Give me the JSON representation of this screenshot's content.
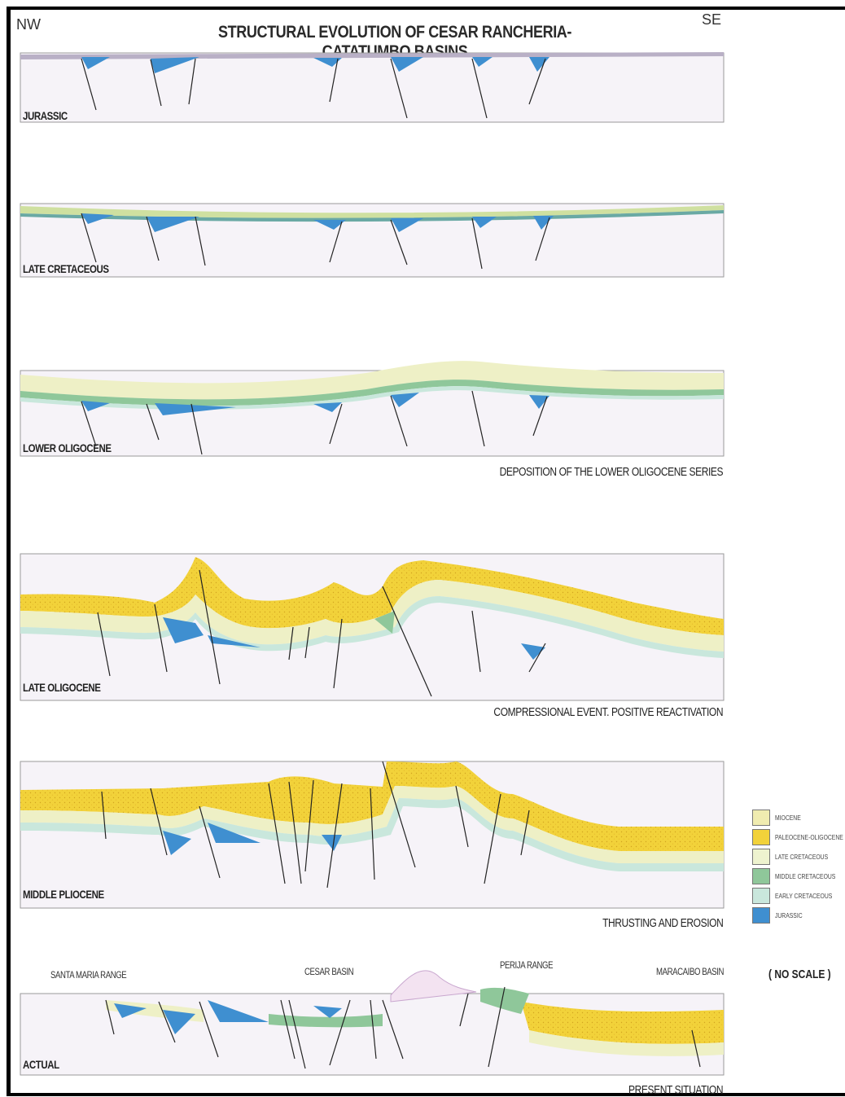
{
  "header": {
    "title": "STRUCTURAL EVOLUTION OF CESAR RANCHERIA-CATATUMBO BASINS",
    "left_direction": "NW",
    "right_direction": "SE"
  },
  "stages": [
    {
      "label": "JURASSIC",
      "caption": ""
    },
    {
      "label": "LATE CRETACEOUS",
      "caption": ""
    },
    {
      "label": "LOWER OLIGOCENE",
      "caption": "DEPOSITION OF THE LOWER OLIGOCENE SERIES"
    },
    {
      "label": "LATE OLIGOCENE",
      "caption": "COMPRESSIONAL EVENT. POSITIVE REACTIVATION"
    },
    {
      "label": "MIDDLE PLIOCENE",
      "caption": "THRUSTING AND  EROSION"
    },
    {
      "label": "ACTUAL",
      "caption": "PRESENT SITUATION"
    }
  ],
  "place_labels": [
    "SANTA MARIA RANGE",
    "CESAR BASIN",
    "PERIJA RANGE",
    "MARACAIBO BASIN"
  ],
  "legend": {
    "items": [
      {
        "label": "MIOCENE",
        "color": "#f0ecb0"
      },
      {
        "label": "PALEOCENE-OLIGOCENE",
        "color": "#f2d23a"
      },
      {
        "label": "LATE CRETACEOUS",
        "color": "#eef3cf"
      },
      {
        "label": "MIDDLE CRETACEOUS",
        "color": "#8fc79a"
      },
      {
        "label": "EARLY CRETACEOUS",
        "color": "#c9e7dc"
      },
      {
        "label": "JURASSIC",
        "color": "#3f8fd0"
      }
    ],
    "note": "( NO SCALE )"
  },
  "colors": {
    "basement": "#f3e9f4",
    "basement_edge": "#c9a7cf",
    "fault": "#222222",
    "frame": "#000000"
  }
}
